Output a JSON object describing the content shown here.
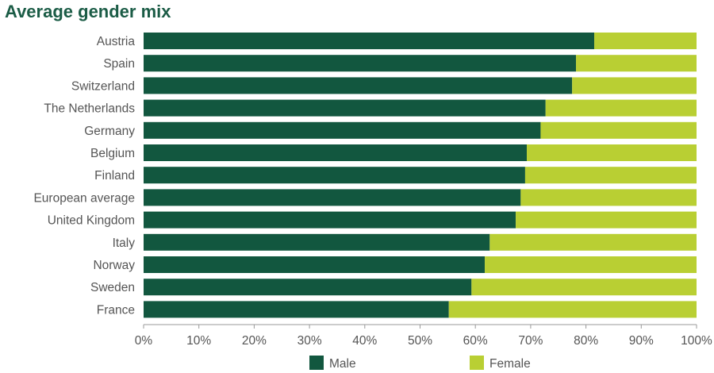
{
  "chart_data": {
    "type": "bar",
    "orientation": "horizontal",
    "stacked": true,
    "title": "Average gender mix",
    "categories": [
      "Austria",
      "Spain",
      "Switzerland",
      "The Netherlands",
      "Germany",
      "Belgium",
      "Finland",
      "European average",
      "United Kingdom",
      "Italy",
      "Norway",
      "Sweden",
      "France"
    ],
    "series": [
      {
        "name": "Male",
        "color": "#12573f",
        "values": [
          81.5,
          78.2,
          77.5,
          72.7,
          71.8,
          69.3,
          69.0,
          68.2,
          67.3,
          62.6,
          61.7,
          59.3,
          55.2
        ]
      },
      {
        "name": "Female",
        "color": "#b9cf33",
        "values": [
          18.5,
          21.8,
          22.5,
          27.3,
          28.2,
          30.7,
          31.0,
          31.8,
          32.7,
          37.4,
          38.3,
          40.7,
          44.8
        ]
      }
    ],
    "xlim": [
      0,
      100
    ],
    "x_ticks": [
      "0%",
      "10%",
      "20%",
      "30%",
      "40%",
      "50%",
      "60%",
      "70%",
      "80%",
      "90%",
      "100%"
    ],
    "grid": false,
    "legend": "bottom-center"
  }
}
